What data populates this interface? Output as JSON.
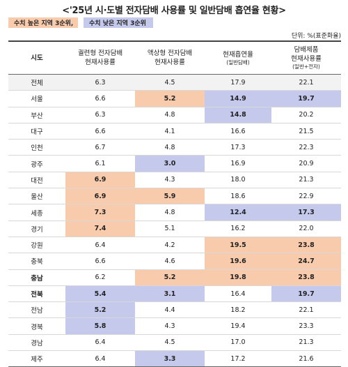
{
  "title": "<'25년 시·도별 전자담배 사용률 및 일반담배 흡연율 현황>",
  "legend": {
    "high_label": "수치 높은 지역 3순위,",
    "low_label": "수치 낮은 지역 3순위",
    "colors": {
      "high": "#f8cbad",
      "low": "#c5c9ec"
    }
  },
  "unit": "단위: %(표준화율)",
  "headers": {
    "region": "시도",
    "cig_type_1": "궐련형 전자담배",
    "cig_type_2": "현재사용률",
    "liquid_1": "액상형 전자담배",
    "liquid_2": "현재사용률",
    "smoking_1": "현재흡연율",
    "smoking_2": "(일반담배)",
    "total_1": "담배제품",
    "total_2": "현재사용률",
    "total_3": "(일반+전자)"
  },
  "rows": [
    {
      "region": "전체",
      "v": [
        "6.3",
        "4.5",
        "17.9",
        "22.1"
      ],
      "hl": [
        "",
        "",
        "",
        ""
      ],
      "bold": false
    },
    {
      "region": "서울",
      "v": [
        "6.6",
        "5.2",
        "14.9",
        "19.7"
      ],
      "hl": [
        "",
        "high",
        "low",
        "low"
      ],
      "bold": false
    },
    {
      "region": "부산",
      "v": [
        "6.3",
        "4.8",
        "14.8",
        "20.2"
      ],
      "hl": [
        "",
        "",
        "low",
        ""
      ],
      "bold": false
    },
    {
      "region": "대구",
      "v": [
        "6.6",
        "4.1",
        "16.6",
        "21.5"
      ],
      "hl": [
        "",
        "",
        "",
        ""
      ],
      "bold": false
    },
    {
      "region": "인천",
      "v": [
        "6.7",
        "4.8",
        "17.3",
        "22.3"
      ],
      "hl": [
        "",
        "",
        "",
        ""
      ],
      "bold": false
    },
    {
      "region": "광주",
      "v": [
        "6.1",
        "3.0",
        "16.9",
        "20.9"
      ],
      "hl": [
        "",
        "low",
        "",
        ""
      ],
      "bold": false
    },
    {
      "region": "대전",
      "v": [
        "6.9",
        "4.3",
        "18.0",
        "21.3"
      ],
      "hl": [
        "high",
        "",
        "",
        ""
      ],
      "bold": false
    },
    {
      "region": "울산",
      "v": [
        "6.9",
        "5.9",
        "18.6",
        "22.9"
      ],
      "hl": [
        "high",
        "high",
        "",
        ""
      ],
      "bold": false
    },
    {
      "region": "세종",
      "v": [
        "7.3",
        "4.8",
        "12.4",
        "17.3"
      ],
      "hl": [
        "high",
        "",
        "low",
        "low"
      ],
      "bold": false
    },
    {
      "region": "경기",
      "v": [
        "7.4",
        "5.1",
        "16.2",
        "22.0"
      ],
      "hl": [
        "high",
        "",
        "",
        ""
      ],
      "bold": false
    },
    {
      "region": "강원",
      "v": [
        "6.4",
        "4.2",
        "19.5",
        "23.8"
      ],
      "hl": [
        "",
        "",
        "high",
        "high"
      ],
      "bold": false
    },
    {
      "region": "충북",
      "v": [
        "6.6",
        "4.6",
        "19.6",
        "24.7"
      ],
      "hl": [
        "",
        "",
        "high",
        "high"
      ],
      "bold": false
    },
    {
      "region": "충남",
      "v": [
        "6.2",
        "5.2",
        "19.8",
        "23.8"
      ],
      "hl": [
        "",
        "high",
        "high",
        "high"
      ],
      "bold": true
    },
    {
      "region": "전북",
      "v": [
        "5.4",
        "3.1",
        "16.4",
        "19.7"
      ],
      "hl": [
        "low",
        "low",
        "",
        "low"
      ],
      "bold": true
    },
    {
      "region": "전남",
      "v": [
        "5.2",
        "4.4",
        "18.2",
        "22.1"
      ],
      "hl": [
        "low",
        "",
        "",
        ""
      ],
      "bold": false
    },
    {
      "region": "경북",
      "v": [
        "5.8",
        "4.3",
        "19.4",
        "23.3"
      ],
      "hl": [
        "low",
        "",
        "",
        ""
      ],
      "bold": false
    },
    {
      "region": "경남",
      "v": [
        "6.4",
        "4.5",
        "17.0",
        "21.3"
      ],
      "hl": [
        "",
        "",
        "",
        ""
      ],
      "bold": false
    },
    {
      "region": "제주",
      "v": [
        "6.4",
        "3.3",
        "17.2",
        "21.6"
      ],
      "hl": [
        "",
        "low",
        "",
        ""
      ],
      "bold": false
    }
  ]
}
